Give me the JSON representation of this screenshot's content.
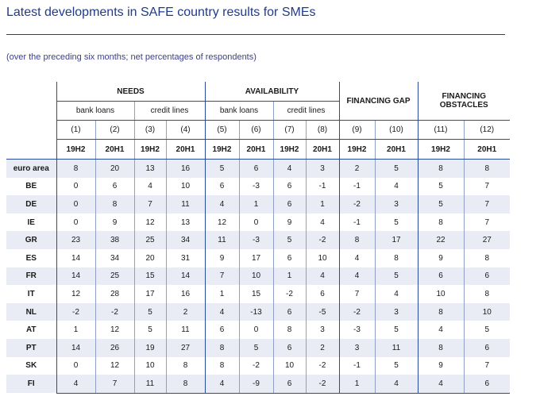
{
  "title": "Latest developments in SAFE country results for SMEs",
  "subtitle": "(over the preceding six months; net percentages of respondents)",
  "groups": {
    "needs": "NEEDS",
    "availability": "AVAILABILITY",
    "gap": "FINANCING GAP",
    "obstacles_line1": "FINANCING",
    "obstacles_line2": "OBSTACLES"
  },
  "subgroups": {
    "bank_loans": "bank loans",
    "credit_lines": "credit lines"
  },
  "col_numbers": [
    "(1)",
    "(2)",
    "(3)",
    "(4)",
    "(5)",
    "(6)",
    "(7)",
    "(8)",
    "(9)",
    "(10)",
    "(11)",
    "(12)"
  ],
  "periods": [
    "19H2",
    "20H1",
    "19H2",
    "20H1",
    "19H2",
    "20H1",
    "19H2",
    "20H1",
    "19H2",
    "20H1",
    "19H2",
    "20H1"
  ],
  "rows": [
    {
      "label": "euro area",
      "values": [
        "8",
        "20",
        "13",
        "16",
        "5",
        "6",
        "4",
        "3",
        "2",
        "5",
        "8",
        "8"
      ]
    },
    {
      "label": "BE",
      "values": [
        "0",
        "6",
        "4",
        "10",
        "6",
        "-3",
        "6",
        "-1",
        "-1",
        "4",
        "5",
        "7"
      ]
    },
    {
      "label": "DE",
      "values": [
        "0",
        "8",
        "7",
        "11",
        "4",
        "1",
        "6",
        "1",
        "-2",
        "3",
        "5",
        "7"
      ]
    },
    {
      "label": "IE",
      "values": [
        "0",
        "9",
        "12",
        "13",
        "12",
        "0",
        "9",
        "4",
        "-1",
        "5",
        "8",
        "7"
      ]
    },
    {
      "label": "GR",
      "values": [
        "23",
        "38",
        "25",
        "34",
        "11",
        "-3",
        "5",
        "-2",
        "8",
        "17",
        "22",
        "27"
      ]
    },
    {
      "label": "ES",
      "values": [
        "14",
        "34",
        "20",
        "31",
        "9",
        "17",
        "6",
        "10",
        "4",
        "8",
        "9",
        "8"
      ]
    },
    {
      "label": "FR",
      "values": [
        "14",
        "25",
        "15",
        "14",
        "7",
        "10",
        "1",
        "4",
        "4",
        "5",
        "6",
        "6"
      ]
    },
    {
      "label": "IT",
      "values": [
        "12",
        "28",
        "17",
        "16",
        "1",
        "15",
        "-2",
        "6",
        "7",
        "4",
        "10",
        "8"
      ]
    },
    {
      "label": "NL",
      "values": [
        "-2",
        "-2",
        "5",
        "2",
        "4",
        "-13",
        "6",
        "-5",
        "-2",
        "3",
        "8",
        "10"
      ]
    },
    {
      "label": "AT",
      "values": [
        "1",
        "12",
        "5",
        "11",
        "6",
        "0",
        "8",
        "3",
        "-3",
        "5",
        "4",
        "5"
      ]
    },
    {
      "label": "PT",
      "values": [
        "14",
        "26",
        "19",
        "27",
        "8",
        "5",
        "6",
        "2",
        "3",
        "11",
        "8",
        "6"
      ]
    },
    {
      "label": "SK",
      "values": [
        "0",
        "12",
        "10",
        "8",
        "8",
        "-2",
        "10",
        "-2",
        "-1",
        "5",
        "9",
        "7"
      ]
    },
    {
      "label": "FI",
      "values": [
        "4",
        "7",
        "11",
        "8",
        "4",
        "-9",
        "6",
        "-2",
        "1",
        "4",
        "4",
        "6"
      ]
    }
  ]
}
